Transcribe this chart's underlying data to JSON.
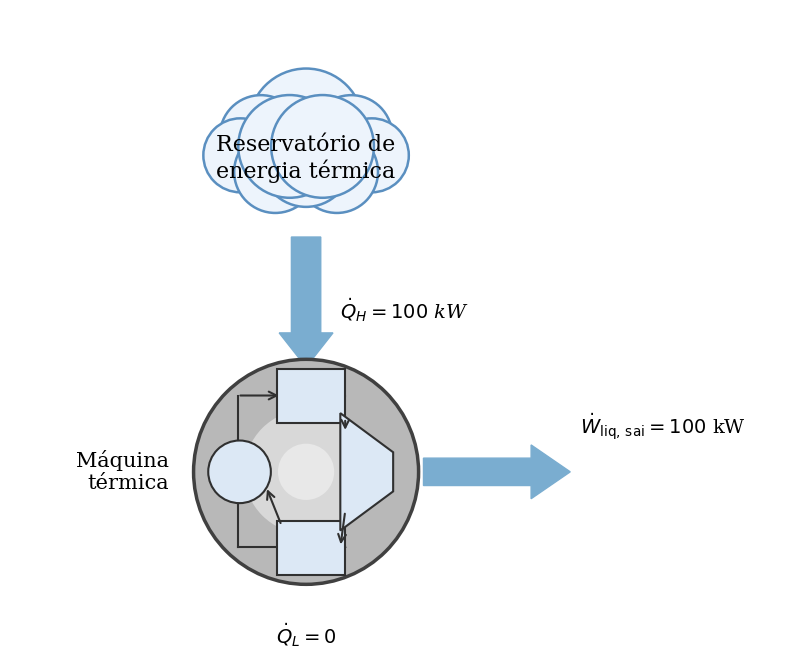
{
  "background_color": "#ffffff",
  "cloud_color_light": "#edf4fc",
  "cloud_color_dark": "#c5daf0",
  "cloud_edge_color": "#5a8fc0",
  "arrow_color": "#7aadd0",
  "engine_color_light": "#e0e0e0",
  "engine_color_dark": "#a0a0a0",
  "engine_edge_color": "#404040",
  "internal_edge_color": "#303030",
  "internal_fill": "#e8f0f8",
  "label_QH": "$\\dot{Q}_H = 100$ kW",
  "label_QL": "$\\dot{Q}_L = 0$",
  "label_W": "$\\dot{W}_{\\mathrm{liq,\\,sai}} = 100$ kW",
  "label_machine": "Máquina\ntérmica",
  "label_reservoir": "Reservatório de\nenergia térmica",
  "figsize": [
    7.88,
    6.64
  ],
  "dpi": 100
}
